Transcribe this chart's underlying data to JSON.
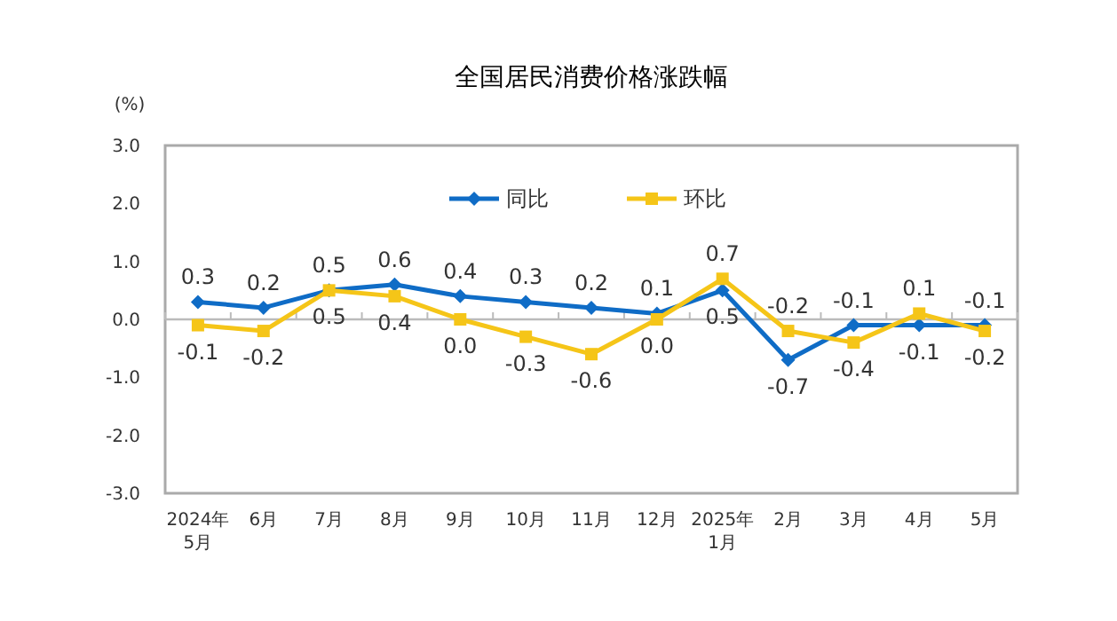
{
  "chart_data": {
    "type": "line",
    "title": "全国居民消费价格涨跌幅",
    "ylabel": "(%)",
    "categories": [
      "2024年\n5月",
      "6月",
      "7月",
      "8月",
      "9月",
      "10月",
      "11月",
      "12月",
      "2025年\n1月",
      "2月",
      "3月",
      "4月",
      "5月"
    ],
    "series": [
      {
        "name": "同比",
        "color": "#0f6cc6",
        "marker": "diamond",
        "values": [
          0.3,
          0.2,
          0.5,
          0.6,
          0.4,
          0.3,
          0.2,
          0.1,
          0.5,
          -0.7,
          -0.1,
          -0.1,
          -0.1
        ],
        "value_labels": [
          "0.3",
          "0.2",
          "0.5",
          "0.6",
          "0.4",
          "0.3",
          "0.2",
          "0.1",
          "0.5",
          "-0.7",
          "-0.1",
          "-0.1",
          "-0.1"
        ]
      },
      {
        "name": "环比",
        "color": "#f5c518",
        "marker": "square",
        "values": [
          -0.1,
          -0.2,
          0.5,
          0.4,
          0.0,
          -0.3,
          -0.6,
          0.0,
          0.7,
          -0.2,
          -0.4,
          0.1,
          -0.2
        ],
        "value_labels": [
          "-0.1",
          "-0.2",
          "0.5",
          "0.4",
          "0.0",
          "-0.3",
          "-0.6",
          "0.0",
          "0.7",
          "-0.2",
          "-0.4",
          "0.1",
          "-0.2"
        ]
      }
    ],
    "ylim": [
      -3,
      3
    ],
    "yticks": [
      {
        "value": -3,
        "label": "-3.0"
      },
      {
        "value": -2,
        "label": "-2.0"
      },
      {
        "value": -1,
        "label": "-1.0"
      },
      {
        "value": 0,
        "label": "0.0"
      },
      {
        "value": 1,
        "label": "1.0"
      },
      {
        "value": 2,
        "label": "2.0"
      },
      {
        "value": 3,
        "label": "3.0"
      }
    ],
    "legend": "top",
    "line_style": "solid"
  }
}
